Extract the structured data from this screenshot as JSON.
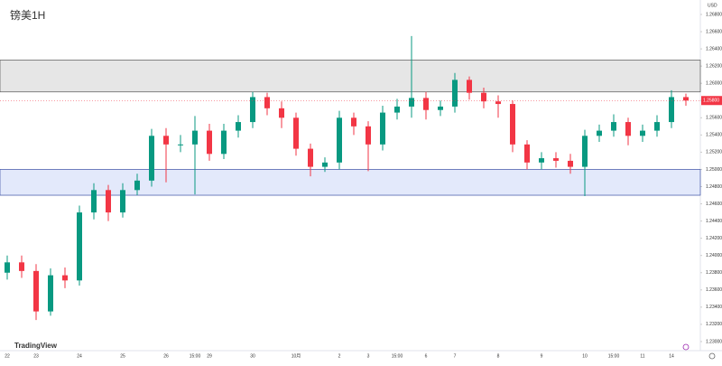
{
  "chart_data": {
    "type": "candlestick",
    "title": "镑美1H",
    "brand": "TradingView",
    "currency": "USD",
    "categories": [
      "22",
      null,
      "23",
      null,
      null,
      "24",
      null,
      null,
      "25",
      null,
      null,
      "26",
      null,
      "15:00",
      "29",
      null,
      null,
      "30",
      null,
      null,
      "10月",
      null,
      null,
      "2",
      null,
      "3",
      null,
      "15:00",
      null,
      "6",
      null,
      "7",
      null,
      null,
      "8",
      null,
      null,
      "9",
      null,
      null,
      "10",
      null,
      "15:00",
      null,
      "11",
      null,
      "14",
      null
    ],
    "open": [
      1.238,
      1.2392,
      1.2382,
      1.2335,
      1.2377,
      1.2371,
      1.245,
      1.2476,
      1.245,
      1.2476,
      1.2487,
      1.2539,
      1.2529,
      1.2529,
      1.2545,
      1.2518,
      1.2545,
      1.2555,
      1.2584,
      1.2571,
      1.256,
      1.2524,
      1.2503,
      1.2508,
      1.256,
      1.255,
      1.2529,
      1.2566,
      1.2573,
      1.2583,
      1.2569,
      1.2573,
      1.2604,
      1.2589,
      1.2579,
      1.2576,
      1.2529,
      1.2508,
      1.2513,
      1.251,
      1.2503,
      1.2539,
      1.2545,
      1.2555,
      1.2539,
      1.2545,
      1.2555,
      1.2584
    ],
    "high": [
      1.24,
      1.24,
      1.239,
      1.2385,
      1.2386,
      1.2458,
      1.2484,
      1.2482,
      1.2484,
      1.2495,
      1.2547,
      1.2548,
      1.254,
      1.2562,
      1.2553,
      1.2553,
      1.2563,
      1.259,
      1.2589,
      1.2579,
      1.2566,
      1.253,
      1.2514,
      1.2568,
      1.2566,
      1.2556,
      1.2574,
      1.2582,
      1.2655,
      1.259,
      1.258,
      1.2612,
      1.2608,
      1.2595,
      1.2586,
      1.258,
      1.2534,
      1.252,
      1.252,
      1.2518,
      1.2546,
      1.2552,
      1.2564,
      1.256,
      1.2552,
      1.2563,
      1.2592,
      1.2588
    ],
    "low": [
      1.2372,
      1.2374,
      1.2325,
      1.233,
      1.2362,
      1.2365,
      1.2442,
      1.244,
      1.2444,
      1.247,
      1.248,
      1.2485,
      1.252,
      1.2471,
      1.251,
      1.2512,
      1.2537,
      1.2548,
      1.2563,
      1.2548,
      1.2516,
      1.2492,
      1.2497,
      1.25,
      1.254,
      1.2498,
      1.2522,
      1.2558,
      1.256,
      1.2558,
      1.2562,
      1.2566,
      1.2581,
      1.2571,
      1.256,
      1.252,
      1.25,
      1.25,
      1.2502,
      1.2495,
      1.2469,
      1.2532,
      1.2538,
      1.2528,
      1.2532,
      1.2538,
      1.2548,
      1.2574
    ],
    "close": [
      1.2392,
      1.2382,
      1.2335,
      1.2377,
      1.2371,
      1.245,
      1.2476,
      1.245,
      1.2476,
      1.2487,
      1.2539,
      1.2529,
      1.2529,
      1.2545,
      1.2518,
      1.2545,
      1.2555,
      1.2584,
      1.2571,
      1.256,
      1.2524,
      1.2503,
      1.2508,
      1.256,
      1.255,
      1.2529,
      1.2566,
      1.2573,
      1.2583,
      1.2569,
      1.2573,
      1.2604,
      1.2589,
      1.2579,
      1.2576,
      1.2529,
      1.2508,
      1.2513,
      1.251,
      1.2503,
      1.2539,
      1.2545,
      1.2555,
      1.2539,
      1.2545,
      1.2555,
      1.2584,
      1.258
    ],
    "up_color": "#089981",
    "down_color": "#f23645",
    "zones": [
      {
        "top": 1.2627,
        "bottom": 1.259,
        "color": "#e6e6e6"
      },
      {
        "top": 1.25,
        "bottom": 1.247,
        "color": "#e3e9fb"
      }
    ],
    "last_price": {
      "value": 1.258,
      "label": "1.25800"
    },
    "ylim": [
      1.22926,
      1.26968
    ],
    "yticks": [
      {
        "value": 1.268,
        "label": "1.26800"
      },
      {
        "value": 1.266,
        "label": "1.26600"
      },
      {
        "value": 1.264,
        "label": "1.26400"
      },
      {
        "value": 1.262,
        "label": "1.26200"
      },
      {
        "value": 1.26,
        "label": "1.26000"
      },
      {
        "value": 1.258,
        "label": "1.25800"
      },
      {
        "value": 1.256,
        "label": "1.25600"
      },
      {
        "value": 1.254,
        "label": "1.25400"
      },
      {
        "value": 1.252,
        "label": "1.25200"
      },
      {
        "value": 1.25,
        "label": "1.25000"
      },
      {
        "value": 1.248,
        "label": "1.24800"
      },
      {
        "value": 1.246,
        "label": "1.24600"
      },
      {
        "value": 1.244,
        "label": "1.24400"
      },
      {
        "value": 1.242,
        "label": "1.24200"
      },
      {
        "value": 1.24,
        "label": "1.24000"
      },
      {
        "value": 1.238,
        "label": "1.23800"
      },
      {
        "value": 1.236,
        "label": "1.23600"
      },
      {
        "value": 1.234,
        "label": "1.23400"
      },
      {
        "value": 1.232,
        "label": "1.23200"
      },
      {
        "value": 1.23,
        "label": "1.23000"
      }
    ]
  }
}
